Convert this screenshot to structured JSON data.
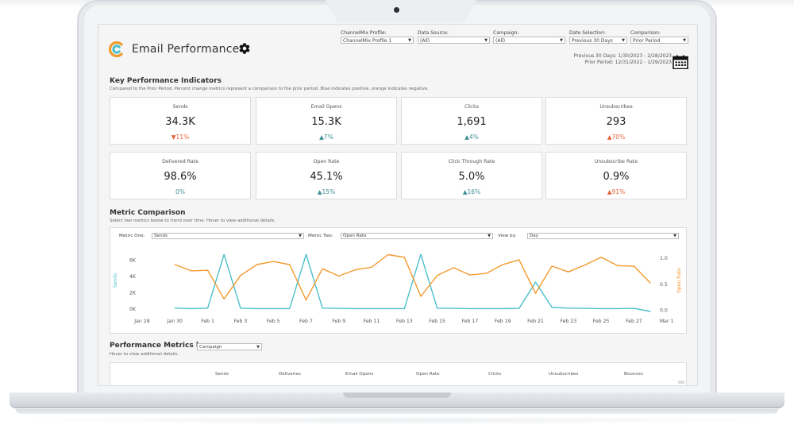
{
  "app": {
    "title": "Email Performance"
  },
  "filters": [
    {
      "label": "ChannelMix Profile:",
      "value": "ChannelMix Profile 1"
    },
    {
      "label": "Data Source:",
      "value": "(All)"
    },
    {
      "label": "Campaign:",
      "value": "(All)"
    },
    {
      "label": "Date Selection:",
      "value": "Previous 30 Days"
    },
    {
      "label": "Comparison:",
      "value": "Prior Period"
    }
  ],
  "periods": {
    "current": "Previous 30 Days: 1/30/2023 - 2/28/2023",
    "prior": "Prior Period: 12/31/2022 - 1/29/2023"
  },
  "kpi": {
    "title": "Key Performance Indicators",
    "subtitle": "Compared to the Prior Period. Percent change metrics represent a comparison to the prior period. Blue indicates positive, orange indicates negative.",
    "cards": [
      {
        "label": "Sends",
        "value": "34.3K",
        "change": "▼11%",
        "status": "negative"
      },
      {
        "label": "Email Opens",
        "value": "15.3K",
        "change": "▲7%",
        "status": "positive"
      },
      {
        "label": "Clicks",
        "value": "1,691",
        "change": "▲4%",
        "status": "positive"
      },
      {
        "label": "Unsubscribes",
        "value": "293",
        "change": "▲70%",
        "status": "negative"
      },
      {
        "label": "Delivered Rate",
        "value": "98.6%",
        "change": "0%",
        "status": "positive"
      },
      {
        "label": "Open Rate",
        "value": "45.1%",
        "change": "▲15%",
        "status": "positive"
      },
      {
        "label": "Click Through Rate",
        "value": "5.0%",
        "change": "▲16%",
        "status": "positive"
      },
      {
        "label": "Unsubscribe Rate",
        "value": "0.9%",
        "change": "▲91%",
        "status": "negative"
      }
    ],
    "colors": {
      "positive": "#3f8f98",
      "negative": "#e8643a"
    }
  },
  "metric_comparison": {
    "title": "Metric Comparison",
    "subtitle": "Select two metrics below to trend over time. Hover to view additional details.",
    "metric_one_label": "Metric One:",
    "metric_one_value": "Sends",
    "metric_two_label": "Metric Two:",
    "metric_two_value": "Open Rate",
    "view_by_label": "View by:",
    "view_by_value": "Day"
  },
  "chart_data": {
    "type": "line",
    "x": [
      "Jan 28",
      "Jan 29",
      "Jan 30",
      "Jan 31",
      "Feb 1",
      "Feb 2",
      "Feb 3",
      "Feb 4",
      "Feb 5",
      "Feb 6",
      "Feb 7",
      "Feb 8",
      "Feb 9",
      "Feb 10",
      "Feb 11",
      "Feb 12",
      "Feb 13",
      "Feb 14",
      "Feb 15",
      "Feb 16",
      "Feb 17",
      "Feb 18",
      "Feb 19",
      "Feb 20",
      "Feb 21",
      "Feb 22",
      "Feb 23",
      "Feb 24",
      "Feb 25",
      "Feb 26",
      "Feb 27",
      "Feb 28"
    ],
    "xticks": [
      "Jan 28",
      "Jan 30",
      "Feb 1",
      "Feb 3",
      "Feb 5",
      "Feb 7",
      "Feb 9",
      "Feb 11",
      "Feb 13",
      "Feb 15",
      "Feb 17",
      "Feb 19",
      "Feb 21",
      "Feb 23",
      "Feb 25",
      "Feb 27",
      "Mar 1"
    ],
    "series": [
      {
        "name": "Sends",
        "axis": "left",
        "color": "#4bbfcc",
        "values": [
          null,
          null,
          100,
          50,
          100,
          6700,
          100,
          50,
          50,
          50,
          6700,
          100,
          80,
          50,
          50,
          50,
          50,
          6700,
          100,
          80,
          50,
          50,
          50,
          80,
          3300,
          200,
          100,
          80,
          50,
          50,
          80,
          -300
        ]
      },
      {
        "name": "Open Rate",
        "axis": "right",
        "color": "#f29a2e",
        "values": [
          null,
          null,
          0.88,
          0.76,
          0.77,
          0.22,
          0.67,
          0.88,
          0.94,
          0.88,
          0.2,
          0.8,
          0.66,
          0.78,
          0.83,
          1.07,
          1.02,
          0.27,
          0.67,
          0.82,
          0.68,
          0.71,
          0.88,
          0.97,
          0.33,
          0.85,
          0.74,
          0.87,
          1.02,
          0.86,
          0.85,
          0.53
        ]
      }
    ],
    "left_axis": {
      "label": "Sends",
      "ticks": [
        "6K",
        "4K",
        "2K",
        "0K"
      ],
      "ylim": [
        -500,
        7500
      ]
    },
    "right_axis": {
      "label": "Open Rate",
      "ticks": [
        "1.0",
        "0.5",
        "0.0"
      ],
      "ylim": [
        -0.05,
        1.2
      ]
    },
    "grid": false
  },
  "performance": {
    "title": "Performance Metrics by",
    "subtitle": "Hover to view additional details.",
    "group_by": "Campaign",
    "columns": [
      "Sends",
      "Deliveries",
      "Email Opens",
      "Open Rate",
      "Clicks",
      "Unsubscribes",
      "Bounces"
    ]
  }
}
